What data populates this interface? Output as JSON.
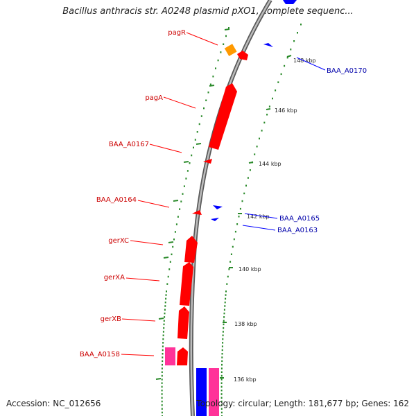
{
  "title": "Bacillus anthracis str. A0248 plasmid pXO1, complete sequenc...",
  "footer": {
    "accession": "Accession: NC_012656",
    "topology": "Topology: circular; Length: 181,677 bp; Genes: 162"
  },
  "colors": {
    "backbone": "#8c8c8c",
    "tick": "#2a8a2a",
    "reverse_gene": "#ff0000",
    "reverse_label": "#cc0000",
    "forward_gene": "#0000ff",
    "forward_label": "#0000aa",
    "orange_feature": "#ff9900",
    "pink_feature": "#ff3399"
  },
  "scale": [
    {
      "id": "s148",
      "label": "148 kbp"
    },
    {
      "id": "s146",
      "label": "146 kbp"
    },
    {
      "id": "s144",
      "label": "144 kbp"
    },
    {
      "id": "s142",
      "label": "142 kbp"
    },
    {
      "id": "s140",
      "label": "140 kbp"
    },
    {
      "id": "s138",
      "label": "138 kbp"
    },
    {
      "id": "s136",
      "label": "136 kbp"
    }
  ],
  "genes_reverse": [
    {
      "id": "pagR",
      "label": "pagR"
    },
    {
      "id": "pagA",
      "label": "pagA"
    },
    {
      "id": "BAA_A0167",
      "label": "BAA_A0167"
    },
    {
      "id": "BAA_A0164",
      "label": "BAA_A0164"
    },
    {
      "id": "gerXC",
      "label": "gerXC"
    },
    {
      "id": "gerXA",
      "label": "gerXA"
    },
    {
      "id": "gerXB",
      "label": "gerXB"
    },
    {
      "id": "BAA_A0158",
      "label": "BAA_A0158"
    }
  ],
  "genes_forward": [
    {
      "id": "BAA_A0170",
      "label": "BAA_A0170"
    },
    {
      "id": "BAA_A0165",
      "label": "BAA_A0165"
    },
    {
      "id": "BAA_A0163",
      "label": "BAA_A0163"
    }
  ]
}
